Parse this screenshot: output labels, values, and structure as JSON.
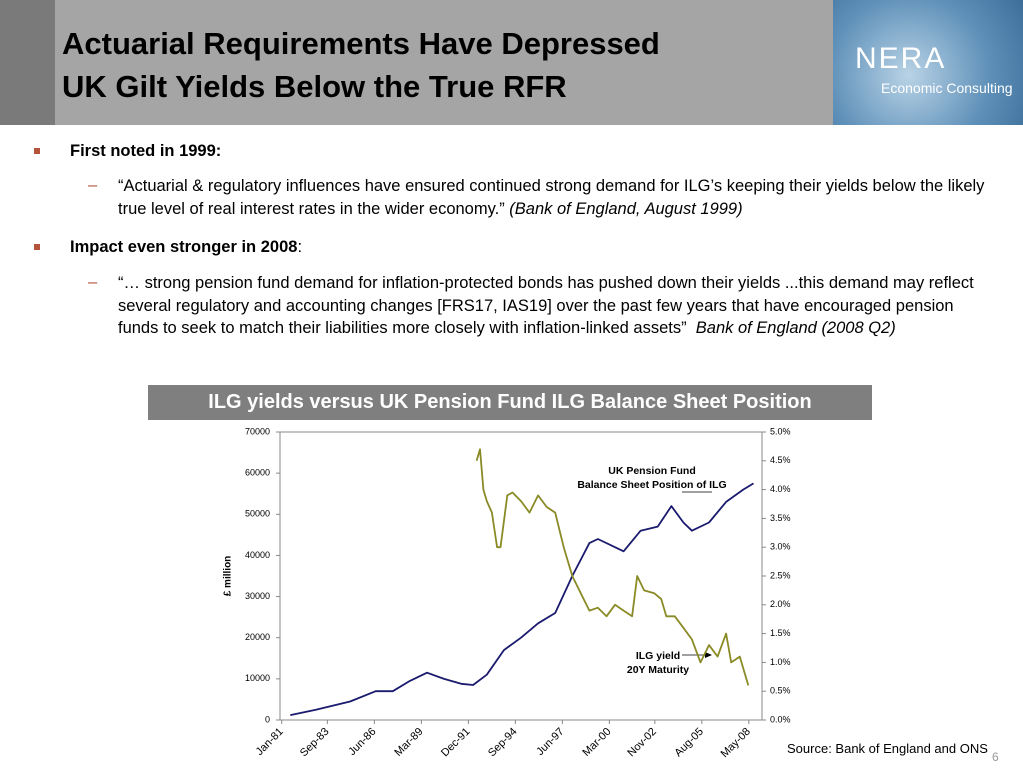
{
  "header": {
    "title_lines": [
      "Actuarial Requirements Have Depressed",
      "UK Gilt Yields Below the True RFR"
    ],
    "logo": "NERA",
    "logo_sub": "Economic Consulting"
  },
  "bullets": [
    {
      "text": "First noted in 1999:",
      "sub": [
        {
          "text": "“Actuarial & regulatory influences have ensured continued strong demand for ILG’s keeping their yields below the likely true level of real interest rates in the wider economy.”",
          "cite": "(Bank of England, August 1999)"
        }
      ]
    },
    {
      "text": "Impact even stronger in 2008",
      "suffix": ":",
      "sub": [
        {
          "text": "“… strong pension fund demand for inflation-protected bonds has pushed down their yields ...this demand may reflect several regulatory and accounting changes [FRS17, IAS19] over the past few years that have encouraged pension funds to seek to match their liabilities more closely with inflation-linked assets”",
          "cite": "Bank of England (2008 Q2)"
        }
      ]
    }
  ],
  "chart_data": {
    "type": "line",
    "title": "ILG yields versus UK Pension Fund ILG Balance Sheet Position",
    "ylabel": "£ million",
    "xlim": [
      1980.9,
      2009.1
    ],
    "xticks": [
      {
        "value": 1981.0,
        "label": "Jan-81"
      },
      {
        "value": 1983.67,
        "label": "Sep-83"
      },
      {
        "value": 1986.42,
        "label": "Jun-86"
      },
      {
        "value": 1989.17,
        "label": "Mar-89"
      },
      {
        "value": 1991.92,
        "label": "Dec-91"
      },
      {
        "value": 1994.67,
        "label": "Sep-94"
      },
      {
        "value": 1997.42,
        "label": "Jun-97"
      },
      {
        "value": 2000.17,
        "label": "Mar-00"
      },
      {
        "value": 2002.83,
        "label": "Nov-02"
      },
      {
        "value": 2005.58,
        "label": "Aug-05"
      },
      {
        "value": 2008.33,
        "label": "May-08"
      }
    ],
    "ylim": [
      0,
      70000
    ],
    "yticks": [
      0,
      10000,
      20000,
      30000,
      40000,
      50000,
      60000,
      70000
    ],
    "y2lim": [
      0,
      5
    ],
    "y2ticks": [
      {
        "value": 0,
        "label": "0.0%"
      },
      {
        "value": 0.5,
        "label": "0.5%"
      },
      {
        "value": 1,
        "label": "1.0%"
      },
      {
        "value": 1.5,
        "label": "1.5%"
      },
      {
        "value": 2,
        "label": "2.0%"
      },
      {
        "value": 2.5,
        "label": "2.5%"
      },
      {
        "value": 3,
        "label": "3.0%"
      },
      {
        "value": 3.5,
        "label": "3.5%"
      },
      {
        "value": 4,
        "label": "4.0%"
      },
      {
        "value": 4.5,
        "label": "4.5%"
      },
      {
        "value": 5,
        "label": "5.0%"
      }
    ],
    "series": [
      {
        "color": "#1a1a6e",
        "axis": "y",
        "x": [
          1981.5,
          1983,
          1985,
          1986.5,
          1987.5,
          1988.5,
          1989.5,
          1990.5,
          1991.5,
          1992.2,
          1993,
          1994,
          1995,
          1996,
          1997,
          1998,
          1999,
          1999.5,
          2000.5,
          2001,
          2002,
          2003,
          2003.8,
          2004.5,
          2005,
          2006,
          2007,
          2008,
          2008.6
        ],
        "values": [
          1200,
          2500,
          4500,
          7000,
          7000,
          9500,
          11500,
          10000,
          8800,
          8500,
          11000,
          17000,
          20000,
          23500,
          26000,
          35000,
          43000,
          44000,
          42000,
          41000,
          46000,
          47000,
          52000,
          48000,
          46000,
          48000,
          53000,
          56000,
          57500
        ]
      },
      {
        "color": "#8a8a26",
        "axis": "y2",
        "x": [
          1992.4,
          1992.6,
          1992.8,
          1993.0,
          1993.3,
          1993.6,
          1993.8,
          1994.2,
          1994.5,
          1995,
          1995.5,
          1996,
          1996.5,
          1997,
          1997.5,
          1998,
          1998.5,
          1999,
          1999.5,
          2000,
          2000.5,
          2001,
          2001.5,
          2001.8,
          2002.2,
          2002.8,
          2003.2,
          2003.5,
          2004,
          2004.5,
          2005,
          2005.5,
          2006,
          2006.5,
          2007,
          2007.3,
          2007.8,
          2008.3
        ],
        "values": [
          4.5,
          4.7,
          4.0,
          3.8,
          3.6,
          3.0,
          3.0,
          3.9,
          3.95,
          3.8,
          3.6,
          3.9,
          3.7,
          3.6,
          3.0,
          2.5,
          2.2,
          1.9,
          1.95,
          1.8,
          2.0,
          1.9,
          1.8,
          2.5,
          2.25,
          2.2,
          2.1,
          1.8,
          1.8,
          1.6,
          1.4,
          1.0,
          1.3,
          1.1,
          1.5,
          1.0,
          1.1,
          0.6
        ]
      }
    ],
    "annotations": [
      {
        "lines": [
          "UK Pension Fund",
          "Balance Sheet Position of ILG"
        ]
      },
      {
        "lines": [
          "ILG yield",
          "20Y Maturity"
        ]
      }
    ],
    "source": "Source: Bank of England and ONS"
  },
  "page_number": "6"
}
